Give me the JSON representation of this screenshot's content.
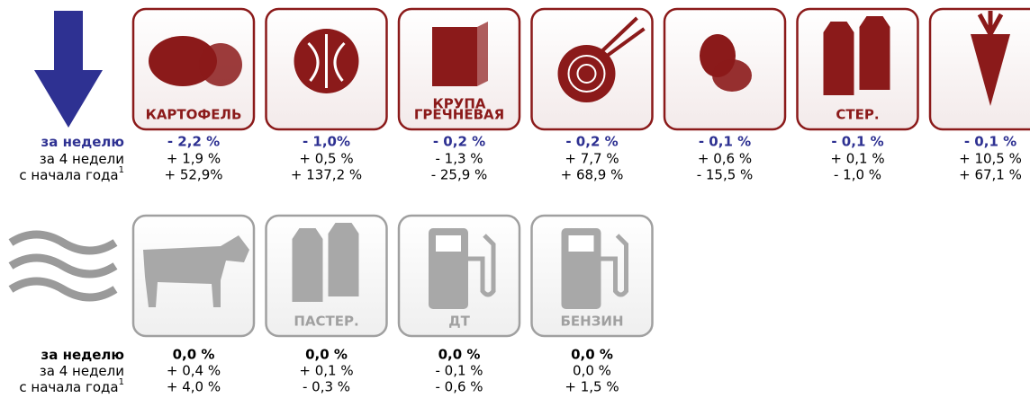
{
  "top": {
    "row_labels": [
      "за неделю",
      "за 4 недели",
      "с начала года"
    ],
    "footnote_mark": "1",
    "items": [
      {
        "label_lines": [
          "КАРТОФЕЛЬ"
        ],
        "week": "- 2,2 %",
        "four_weeks": "+ 1,9 %",
        "ytd": "+ 52,9%"
      },
      {
        "week": "- 1,0%",
        "four_weeks": "+ 0,5 %",
        "ytd": "+ 137,2 %"
      },
      {
        "label_lines": [
          "КРУПА",
          "ГРЕЧНЕВАЯ"
        ],
        "week": "- 0,2 %",
        "four_weeks": "- 1,3 %",
        "ytd": "- 25,9 %"
      },
      {
        "week": "- 0,2 %",
        "four_weeks": "+ 7,7 %",
        "ytd": "+ 68,9 %"
      },
      {
        "week": "- 0,1 %",
        "four_weeks": "+ 0,6 %",
        "ytd": "- 15,5 %"
      },
      {
        "label_lines": [
          "СТЕР."
        ],
        "week": "- 0,1 %",
        "four_weeks": "+ 0,1 %",
        "ytd": "- 1,0 %"
      },
      {
        "week": "- 0,1 %",
        "four_weeks": "+ 10,5 %",
        "ytd": "+ 67,1 %"
      }
    ]
  },
  "bottom": {
    "row_labels": [
      "за неделю",
      "за 4 недели",
      "с начала года"
    ],
    "footnote_mark": "1",
    "items": [
      {
        "week": "0,0 %",
        "four_weeks": "+ 0,4 %",
        "ytd": "+ 4,0 %"
      },
      {
        "label_lines": [
          "ПАСТЕР."
        ],
        "week": "0,0 %",
        "four_weeks": "+ 0,1 %",
        "ytd": "- 0,3 %"
      },
      {
        "label_lines": [
          "ДТ"
        ],
        "week": "0,0 %",
        "four_weeks": "- 0,1 %",
        "ytd": "- 0,6 %"
      },
      {
        "label_lines": [
          "БЕНЗИН"
        ],
        "week": "0,0 %",
        "four_weeks": "0,0 %",
        "ytd": "+ 1,5 %"
      }
    ]
  }
}
